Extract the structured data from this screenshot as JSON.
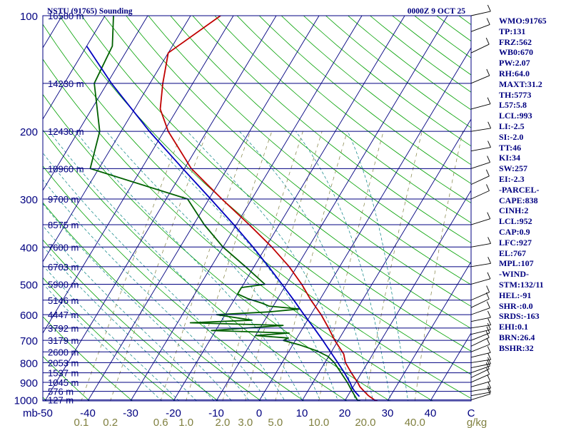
{
  "header": {
    "station": "NSTU (91765) Sounding",
    "time": "0000Z  9 OCT 25"
  },
  "indices": [
    "WMO:91765",
    "TP:131",
    "FRZ:562",
    "WB0:670",
    "PW:2.07",
    "RH:64.0",
    "MAXT:31.2",
    "TH:5773",
    "L57:5.8",
    "LCL:993",
    "LI:-2.5",
    "SI:-2.0",
    "TT:46",
    "KI:34",
    "SW:257",
    "EI:-2.3",
    "-PARCEL-",
    "CAPE:838",
    "CINH:2",
    "LCL:952",
    "CAP:0.9",
    "LFC:927",
    "EL:767",
    "MPL:107",
    "-WIND-",
    "STM:132/11",
    "HEL:-91",
    "SHR-:0.0",
    "SRDS:-163",
    "EHI:0.1",
    "BRN:26.4",
    "BSHR:32"
  ],
  "colors": {
    "isobar": "#000080",
    "isotherm": "#000080",
    "dry_adiabat": "#00a000",
    "moist_adiabat": "#008080",
    "mixing_ratio": "#808040",
    "temperature": "#c00000",
    "dewpoint": "#006000",
    "parcel": "#0000c0",
    "wind": "#000000"
  },
  "chart_data": {
    "type": "line",
    "title": "NSTU (91765) Sounding",
    "xlabel": "°C",
    "ylabel": "mb",
    "pressure_ticks": [
      100,
      200,
      300,
      400,
      500,
      600,
      700,
      800,
      900,
      1000
    ],
    "temp_ticks": [
      -50,
      -40,
      -30,
      -20,
      -10,
      0,
      10,
      20,
      30,
      40
    ],
    "temp_unit_label": "C",
    "ylabel_left": "mb",
    "mixing_ratio_labels": [
      "0.1",
      "0.2",
      "0.6",
      "1.0",
      "2.0",
      "3.0",
      "5.0",
      "10.0",
      "20.0",
      "40.0"
    ],
    "mixing_ratio_unit": "g/kg",
    "heights": [
      {
        "p": 100,
        "h": "16580 m"
      },
      {
        "p": 150,
        "h": "14230 m"
      },
      {
        "p": 200,
        "h": "12430 m"
      },
      {
        "p": 250,
        "h": "10960 m"
      },
      {
        "p": 300,
        "h": "9700 m"
      },
      {
        "p": 350,
        "h": "8575 m"
      },
      {
        "p": 400,
        "h": "7600 m"
      },
      {
        "p": 450,
        "h": "6703 m"
      },
      {
        "p": 500,
        "h": "5900 m"
      },
      {
        "p": 550,
        "h": "5146 m"
      },
      {
        "p": 600,
        "h": "4447 m"
      },
      {
        "p": 650,
        "h": "3792 m"
      },
      {
        "p": 700,
        "h": "3179 m"
      },
      {
        "p": 750,
        "h": "2600 m"
      },
      {
        "p": 800,
        "h": "2053 m"
      },
      {
        "p": 850,
        "h": "1537 m"
      },
      {
        "p": 900,
        "h": "1045 m"
      },
      {
        "p": 950,
        "h": "576 m"
      },
      {
        "p": 1000,
        "h": "127 m"
      }
    ],
    "series": [
      {
        "name": "Temperature",
        "points": [
          [
            1006,
            27.6
          ],
          [
            1000,
            26.8
          ],
          [
            975,
            24.8
          ],
          [
            950,
            23.2
          ],
          [
            925,
            21.6
          ],
          [
            900,
            20.4
          ],
          [
            850,
            17.6
          ],
          [
            800,
            14.8
          ],
          [
            760,
            13.2
          ],
          [
            700,
            9.2
          ],
          [
            650,
            6.0
          ],
          [
            600,
            2.4
          ],
          [
            550,
            -2.0
          ],
          [
            500,
            -6.4
          ],
          [
            450,
            -11.8
          ],
          [
            400,
            -18.6
          ],
          [
            350,
            -27.0
          ],
          [
            300,
            -37.0
          ],
          [
            250,
            -48.4
          ],
          [
            200,
            -59.0
          ],
          [
            175,
            -64.0
          ],
          [
            150,
            -67.0
          ],
          [
            125,
            -70.0
          ],
          [
            100,
            -63.0
          ]
        ]
      },
      {
        "name": "Dewpoint",
        "points": [
          [
            1006,
            23.6
          ],
          [
            1000,
            22.8
          ],
          [
            975,
            21.6
          ],
          [
            950,
            20.4
          ],
          [
            900,
            18.0
          ],
          [
            850,
            15.2
          ],
          [
            800,
            12.2
          ],
          [
            770,
            9.8
          ],
          [
            745,
            6.4
          ],
          [
            720,
            1.8
          ],
          [
            700,
            -2.8
          ],
          [
            690,
            -2.0
          ],
          [
            680,
            -10.0
          ],
          [
            670,
            -2.5
          ],
          [
            660,
            -21.0
          ],
          [
            640,
            -5.0
          ],
          [
            630,
            -27.0
          ],
          [
            620,
            -13.0
          ],
          [
            600,
            -22.0
          ],
          [
            590,
            -10.0
          ],
          [
            580,
            -3.5
          ],
          [
            570,
            -11.0
          ],
          [
            560,
            -13.0
          ],
          [
            545,
            -17.0
          ],
          [
            530,
            -20.0
          ],
          [
            510,
            -20.0
          ],
          [
            500,
            -15.0
          ],
          [
            450,
            -22.0
          ],
          [
            400,
            -30.0
          ],
          [
            350,
            -37.5
          ],
          [
            300,
            -45.0
          ],
          [
            250,
            -72.0
          ],
          [
            200,
            -75.0
          ],
          [
            150,
            -83.0
          ],
          [
            120,
            -84.0
          ],
          [
            100,
            -88.0
          ]
        ]
      },
      {
        "name": "Parcel",
        "points": [
          [
            980,
            22.8
          ],
          [
            950,
            21.0
          ],
          [
            927,
            19.8
          ],
          [
            900,
            18.6
          ],
          [
            850,
            16.0
          ],
          [
            800,
            13.0
          ],
          [
            750,
            9.8
          ],
          [
            700,
            6.4
          ],
          [
            650,
            2.6
          ],
          [
            600,
            -1.6
          ],
          [
            550,
            -6.0
          ],
          [
            500,
            -11.0
          ],
          [
            450,
            -16.6
          ],
          [
            400,
            -23.0
          ],
          [
            350,
            -30.6
          ],
          [
            300,
            -39.6
          ],
          [
            250,
            -50.4
          ],
          [
            200,
            -63.4
          ],
          [
            150,
            -79.0
          ],
          [
            120,
            -90.0
          ]
        ]
      }
    ]
  }
}
